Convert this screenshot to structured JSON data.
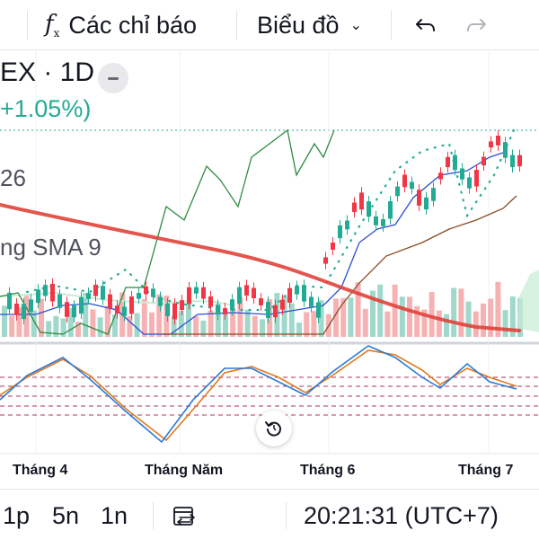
{
  "toolbar": {
    "indicators_icon": "function-fx-icon",
    "indicators_label": "Các chỉ báo",
    "chart_type_label": "Biểu đồ",
    "chart_type_chevron": "chevron-down-icon",
    "undo_icon": "undo-icon",
    "redo_icon": "redo-icon"
  },
  "legend": {
    "symbol": "EX · 1D",
    "change": "+1.05%)",
    "indicator_value": "26",
    "sma_label": "ng SMA 9"
  },
  "colors": {
    "up": "#22ab94",
    "down": "#f23645",
    "sma_long": "#e0433a",
    "green_line": "#2e8b3f",
    "blue_line": "#2a4fd6",
    "brown_line": "#8b4a22",
    "osc_blue": "#2a7ad6",
    "osc_orange": "#e07a1e",
    "ref_dashed": "#b0306a"
  },
  "x_axis": {
    "labels": [
      "Tháng 4",
      "Tháng Năm",
      "Tháng 6",
      "Tháng 7"
    ]
  },
  "reset_icon": "rotate-reset-icon",
  "bottom": {
    "interval_1": "1p",
    "interval_2": "5n",
    "interval_3": "1n",
    "compare_icon": "date-range-swap-icon",
    "clock": "20:21:31 (UTC+7)"
  }
}
